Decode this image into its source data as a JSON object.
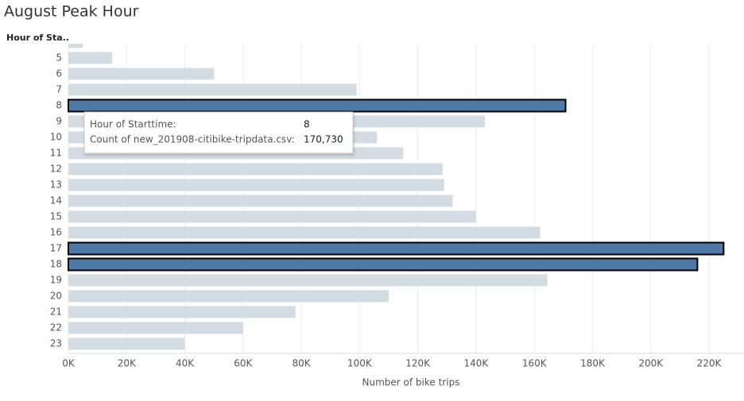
{
  "chart_data": {
    "type": "bar",
    "orientation": "horizontal",
    "title": "August Peak Hour",
    "y_header": "Hour of Sta..",
    "xlabel": "Number of bike trips",
    "categories": [
      null,
      "5",
      "6",
      "7",
      "8",
      "9",
      "10",
      "11",
      "12",
      "13",
      "14",
      "15",
      "16",
      "17",
      "18",
      "19",
      "20",
      "21",
      "22",
      "23"
    ],
    "values": [
      5000,
      15000,
      50000,
      99000,
      170730,
      143000,
      106000,
      115000,
      128500,
      129000,
      132000,
      140000,
      162000,
      225000,
      216000,
      164500,
      110000,
      78000,
      60000,
      40000
    ],
    "colors": [
      "#d3dce3",
      "#d3dce3",
      "#d3dce3",
      "#d3dce3",
      "#4e79a7",
      "#d3dce3",
      "#d3dce3",
      "#d3dce3",
      "#d3dce3",
      "#d3dce3",
      "#d3dce3",
      "#d3dce3",
      "#d3dce3",
      "#4e79a7",
      "#4e79a7",
      "#d3dce3",
      "#d3dce3",
      "#d3dce3",
      "#d3dce3",
      "#d3dce3"
    ],
    "selected": [
      false,
      false,
      false,
      false,
      true,
      false,
      false,
      false,
      false,
      false,
      false,
      false,
      false,
      true,
      true,
      false,
      false,
      false,
      false,
      false
    ],
    "xlim": [
      0,
      232000
    ],
    "xticks": [
      {
        "value": 0,
        "label": "0K"
      },
      {
        "value": 20000,
        "label": "20K"
      },
      {
        "value": 40000,
        "label": "40K"
      },
      {
        "value": 60000,
        "label": "60K"
      },
      {
        "value": 80000,
        "label": "80K"
      },
      {
        "value": 100000,
        "label": "100K"
      },
      {
        "value": 120000,
        "label": "120K"
      },
      {
        "value": 140000,
        "label": "140K"
      },
      {
        "value": 160000,
        "label": "160K"
      },
      {
        "value": 180000,
        "label": "180K"
      },
      {
        "value": 200000,
        "label": "200K"
      },
      {
        "value": 220000,
        "label": "220K"
      }
    ],
    "grid": true,
    "tooltip": {
      "rows": [
        {
          "label": "Hour of Starttime:",
          "value": "8"
        },
        {
          "label": "Count of new_201908-citibike-tripdata.csv:",
          "value": "170,730"
        }
      ]
    }
  }
}
